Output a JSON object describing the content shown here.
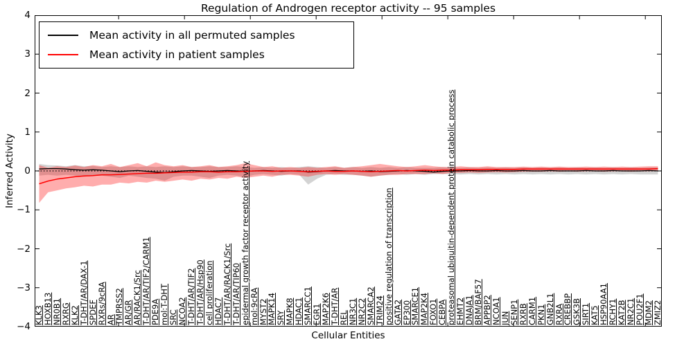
{
  "title": "Regulation of Androgen receptor activity -- 95 samples",
  "axes": {
    "ylabel": "Inferred Activity",
    "xlabel": "Cellular Entities",
    "yticks": [
      "4",
      "3",
      "2",
      "1",
      "0",
      "−1",
      "−2",
      "−3",
      "−4"
    ],
    "ylim": [
      -4,
      4
    ],
    "grid": false
  },
  "legend": {
    "position": "upper-left",
    "items": [
      {
        "label": "Mean activity in all permuted samples",
        "color": "#000000"
      },
      {
        "label": "Mean activity in patient samples",
        "color": "#ff0000"
      }
    ]
  },
  "chart_data": {
    "type": "line",
    "title": "Regulation of Androgen receptor activity -- 95 samples",
    "xlabel": "Cellular Entities",
    "ylabel": "Inferred Activity",
    "ylim": [
      -4,
      4
    ],
    "zero_reference_line": true,
    "categories": [
      "KLK3",
      "HOXB13",
      "NR0B1",
      "RXRG",
      "KLK2",
      "T-DHT/AR/DAX-1",
      "SPDEF",
      "RXRs/9cRA",
      "AR",
      "TMPRSS2",
      "AR/GR",
      "AR/RACK1/Src",
      "T-DHT/AR/TIF2/CARM1",
      "PDE9A",
      "mol:T-DHT",
      "SRC",
      "NCOA2",
      "T-DHT/AR/TIF2",
      "T-DHT/AR/Hsp90",
      "cell proliferation",
      "HDAC7",
      "T-DHT/AR/RACK1/Src",
      "T-DHT/AR/TIP60",
      "epidermal growth factor receptor activity",
      "mol:9cRA",
      "MYST2",
      "MAPK14",
      "SRY",
      "MAPK8",
      "HDAC1",
      "SMARCC1",
      "EGR1",
      "MAP2K6",
      "T-DHT/AR",
      "REL",
      "NR3C1",
      "NR2C2",
      "SMARCA2",
      "TRIM24",
      "positive regulation of transcription",
      "GATA2",
      "EP300",
      "SMARCE1",
      "MAP2K4",
      "FOXO1",
      "CEBPA",
      "proteasomal ubiquitin-dependent protein catabolic process",
      "EHMT2",
      "DNAJA1",
      "BRM/BAF57",
      "APPBP2",
      "NCOA1",
      "JUN",
      "SENP1",
      "RXRB",
      "CARM1",
      "PKN1",
      "GNB2L1",
      "RXRA",
      "CREBBP",
      "GSK3B",
      "SIRT1",
      "KAT5",
      "HSP90AA1",
      "RCHY1",
      "KAT2B",
      "NR2C1",
      "POU2F1",
      "MDM2",
      "ZMIZ2"
    ],
    "series": [
      {
        "name": "Mean activity in all permuted samples",
        "color": "#000000",
        "band_color": "rgba(128,128,128,0.35)",
        "values": [
          0.05,
          0.06,
          0.06,
          0.05,
          0.03,
          0.02,
          0.03,
          0.02,
          0.0,
          -0.02,
          0.0,
          0.01,
          -0.01,
          -0.03,
          -0.04,
          -0.02,
          0.0,
          0.01,
          0.0,
          -0.01,
          0.0,
          0.01,
          0.0,
          -0.01,
          0.0,
          0.01,
          0.0,
          -0.01,
          0.0,
          0.0,
          -0.03,
          -0.02,
          0.0,
          0.01,
          0.0,
          0.0,
          -0.01,
          0.0,
          -0.02,
          -0.01,
          0.0,
          0.01,
          0.0,
          -0.01,
          -0.03,
          -0.01,
          0.0,
          0.0,
          0.01,
          0.0,
          0.0,
          0.01,
          0.0,
          0.0,
          0.01,
          0.0,
          0.0,
          0.01,
          0.0,
          0.0,
          0.0,
          0.01,
          0.0,
          0.0,
          0.01,
          0.0,
          0.0,
          0.0,
          0.01,
          0.0
        ],
        "upper": [
          0.18,
          0.15,
          0.14,
          0.12,
          0.15,
          0.12,
          0.13,
          0.1,
          0.12,
          0.1,
          0.12,
          0.1,
          0.12,
          0.1,
          0.12,
          0.1,
          0.12,
          0.1,
          0.1,
          0.12,
          0.1,
          0.1,
          0.12,
          0.1,
          0.08,
          0.1,
          0.08,
          0.1,
          0.08,
          0.1,
          0.12,
          0.1,
          0.08,
          0.1,
          0.08,
          0.1,
          0.08,
          0.1,
          0.08,
          0.1,
          0.08,
          0.1,
          0.08,
          0.08,
          0.08,
          0.1,
          0.08,
          0.08,
          0.09,
          0.08,
          0.09,
          0.08,
          0.09,
          0.08,
          0.09,
          0.08,
          0.09,
          0.08,
          0.09,
          0.08,
          0.09,
          0.08,
          0.09,
          0.08,
          0.09,
          0.08,
          0.09,
          0.08,
          0.09,
          0.09
        ],
        "lower": [
          -0.12,
          -0.1,
          -0.12,
          -0.1,
          -0.12,
          -0.15,
          -0.12,
          -0.12,
          -0.15,
          -0.18,
          -0.12,
          -0.15,
          -0.18,
          -0.2,
          -0.25,
          -0.15,
          -0.12,
          -0.12,
          -0.15,
          -0.18,
          -0.12,
          -0.1,
          -0.12,
          -0.15,
          -0.1,
          -0.08,
          -0.1,
          -0.12,
          -0.08,
          -0.1,
          -0.35,
          -0.2,
          -0.1,
          -0.08,
          -0.1,
          -0.1,
          -0.12,
          -0.15,
          -0.12,
          -0.1,
          -0.08,
          -0.1,
          -0.08,
          -0.1,
          -0.08,
          -0.08,
          -0.08,
          -0.09,
          -0.08,
          -0.09,
          -0.08,
          -0.09,
          -0.08,
          -0.09,
          -0.08,
          -0.09,
          -0.08,
          -0.09,
          -0.08,
          -0.09,
          -0.08,
          -0.09,
          -0.08,
          -0.09,
          -0.08,
          -0.09,
          -0.08,
          -0.09,
          -0.09,
          -0.09
        ]
      },
      {
        "name": "Mean activity in patient samples",
        "color": "#ff0000",
        "band_color": "rgba(255,0,0,0.32)",
        "values": [
          -0.33,
          -0.26,
          -0.21,
          -0.18,
          -0.15,
          -0.13,
          -0.12,
          -0.1,
          -0.1,
          -0.09,
          -0.08,
          -0.07,
          -0.06,
          -0.06,
          -0.05,
          -0.04,
          -0.03,
          -0.03,
          -0.02,
          -0.02,
          -0.03,
          -0.02,
          -0.02,
          -0.01,
          0.0,
          0.0,
          -0.01,
          0.0,
          0.0,
          -0.01,
          -0.02,
          -0.01,
          0.0,
          -0.01,
          -0.01,
          0.0,
          -0.01,
          -0.02,
          -0.01,
          0.0,
          0.01,
          0.0,
          0.01,
          0.02,
          0.01,
          0.02,
          0.02,
          0.03,
          0.03,
          0.03,
          0.04,
          0.04,
          0.04,
          0.04,
          0.05,
          0.05,
          0.05,
          0.05,
          0.05,
          0.05,
          0.05,
          0.05,
          0.05,
          0.05,
          0.05,
          0.05,
          0.05,
          0.05,
          0.05,
          0.06
        ],
        "upper": [
          0.15,
          0.08,
          0.12,
          0.1,
          0.14,
          0.1,
          0.15,
          0.12,
          0.18,
          0.1,
          0.15,
          0.2,
          0.12,
          0.22,
          0.15,
          0.12,
          0.15,
          0.1,
          0.12,
          0.15,
          0.1,
          0.12,
          0.15,
          0.2,
          0.15,
          0.1,
          0.12,
          0.08,
          0.1,
          0.08,
          0.1,
          0.08,
          0.1,
          0.12,
          0.08,
          0.1,
          0.12,
          0.15,
          0.18,
          0.15,
          0.12,
          0.1,
          0.12,
          0.15,
          0.12,
          0.1,
          0.1,
          0.12,
          0.1,
          0.1,
          0.12,
          0.1,
          0.1,
          0.1,
          0.11,
          0.1,
          0.11,
          0.1,
          0.11,
          0.1,
          0.1,
          0.11,
          0.1,
          0.11,
          0.1,
          0.11,
          0.1,
          0.11,
          0.12,
          0.12
        ],
        "lower": [
          -0.82,
          -0.55,
          -0.5,
          -0.45,
          -0.42,
          -0.38,
          -0.4,
          -0.35,
          -0.35,
          -0.3,
          -0.32,
          -0.28,
          -0.3,
          -0.25,
          -0.28,
          -0.25,
          -0.22,
          -0.25,
          -0.2,
          -0.22,
          -0.18,
          -0.2,
          -0.15,
          -0.18,
          -0.15,
          -0.12,
          -0.15,
          -0.1,
          -0.1,
          -0.12,
          -0.15,
          -0.1,
          -0.08,
          -0.1,
          -0.08,
          -0.1,
          -0.12,
          -0.15,
          -0.12,
          -0.1,
          -0.1,
          -0.08,
          -0.08,
          -0.08,
          -0.06,
          -0.08,
          -0.05,
          -0.05,
          -0.04,
          -0.05,
          -0.04,
          -0.03,
          -0.04,
          -0.03,
          -0.02,
          -0.02,
          -0.02,
          -0.01,
          -0.02,
          -0.01,
          -0.02,
          -0.01,
          -0.01,
          -0.02,
          -0.01,
          -0.01,
          -0.02,
          -0.01,
          -0.01,
          0.0
        ]
      }
    ]
  }
}
